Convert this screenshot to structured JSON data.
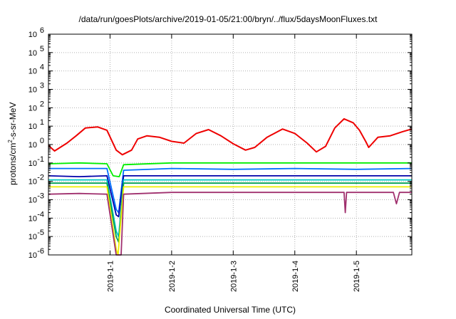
{
  "chart_data": {
    "type": "line",
    "title": "/data/run/goesPlots/archive/2019-01-05/21:00/bryn/../flux/5daysMoonFluxes.txt",
    "xlabel": "Coordinated Universal Time (UTC)",
    "ylabel": {
      "pre": "protons/cm",
      "sup": "2",
      "post": "-s-sr-MeV"
    },
    "yscale": "log",
    "ylim_exp": [
      -6,
      6
    ],
    "y_ticks": [
      {
        "base": "10",
        "exp": "-6"
      },
      {
        "base": "10",
        "exp": "-5"
      },
      {
        "base": "10",
        "exp": "-4"
      },
      {
        "base": "10",
        "exp": "-3"
      },
      {
        "base": "10",
        "exp": "-2"
      },
      {
        "base": "10",
        "exp": "-1"
      },
      {
        "base": "10",
        "exp": "0"
      },
      {
        "base": "10",
        "exp": "1"
      },
      {
        "base": "10",
        "exp": "2"
      },
      {
        "base": "10",
        "exp": "3"
      },
      {
        "base": "10",
        "exp": "4"
      },
      {
        "base": "10",
        "exp": "5"
      },
      {
        "base": "10",
        "exp": "6"
      }
    ],
    "xlim_days": [
      -1.0,
      4.9
    ],
    "x_ticks": [
      {
        "label": "2019-1-1",
        "day": 0
      },
      {
        "label": "2019-1-2",
        "day": 1
      },
      {
        "label": "2019-1-3",
        "day": 2
      },
      {
        "label": "2019-1-4",
        "day": 3
      },
      {
        "label": "2019-1-5",
        "day": 4
      }
    ],
    "grid": true,
    "series": [
      {
        "color": "#ee0000",
        "style": "red",
        "points": [
          [
            -1.0,
            0.9
          ],
          [
            -0.9,
            0.45
          ],
          [
            -0.7,
            1.2
          ],
          [
            -0.55,
            3
          ],
          [
            -0.4,
            8
          ],
          [
            -0.2,
            9
          ],
          [
            -0.05,
            6
          ],
          [
            0.1,
            0.5
          ],
          [
            0.2,
            0.28
          ],
          [
            0.35,
            0.5
          ],
          [
            0.45,
            2
          ],
          [
            0.6,
            3
          ],
          [
            0.8,
            2.5
          ],
          [
            1.0,
            1.5
          ],
          [
            1.2,
            1.2
          ],
          [
            1.4,
            4
          ],
          [
            1.6,
            6.5
          ],
          [
            1.8,
            3
          ],
          [
            2.0,
            1.1
          ],
          [
            2.2,
            0.5
          ],
          [
            2.35,
            0.7
          ],
          [
            2.55,
            2.5
          ],
          [
            2.8,
            7
          ],
          [
            3.0,
            4
          ],
          [
            3.2,
            1.2
          ],
          [
            3.35,
            0.4
          ],
          [
            3.5,
            0.8
          ],
          [
            3.65,
            8
          ],
          [
            3.8,
            25
          ],
          [
            3.95,
            15
          ],
          [
            4.05,
            6
          ],
          [
            4.15,
            1.5
          ],
          [
            4.2,
            0.7
          ],
          [
            4.35,
            2.5
          ],
          [
            4.55,
            3
          ],
          [
            4.75,
            5
          ],
          [
            4.9,
            7
          ]
        ]
      },
      {
        "color": "#00ee00",
        "style": "green",
        "points": [
          [
            -1.0,
            0.09
          ],
          [
            -0.5,
            0.1
          ],
          [
            -0.05,
            0.09
          ],
          [
            0.05,
            0.02
          ],
          [
            0.15,
            0.018
          ],
          [
            0.22,
            0.08
          ],
          [
            1.0,
            0.1
          ],
          [
            2.0,
            0.1
          ],
          [
            3.0,
            0.1
          ],
          [
            4.0,
            0.1
          ],
          [
            4.9,
            0.1
          ]
        ]
      },
      {
        "color": "#0070ff",
        "style": "blue",
        "points": [
          [
            -1.0,
            0.05
          ],
          [
            -0.5,
            0.05
          ],
          [
            -0.05,
            0.05
          ],
          [
            0.1,
            0.0003
          ],
          [
            0.14,
            0.0002
          ],
          [
            0.22,
            0.04
          ],
          [
            1.0,
            0.05
          ],
          [
            2.0,
            0.045
          ],
          [
            3.0,
            0.05
          ],
          [
            4.0,
            0.045
          ],
          [
            4.9,
            0.05
          ]
        ]
      },
      {
        "color": "#0000aa",
        "style": "navy",
        "points": [
          [
            -1.0,
            0.02
          ],
          [
            -0.5,
            0.018
          ],
          [
            -0.05,
            0.02
          ],
          [
            0.1,
            0.00015
          ],
          [
            0.14,
            0.00012
          ],
          [
            0.22,
            0.02
          ],
          [
            1.0,
            0.02
          ],
          [
            2.0,
            0.02
          ],
          [
            3.0,
            0.02
          ],
          [
            4.0,
            0.02
          ],
          [
            4.9,
            0.02
          ]
        ]
      },
      {
        "color": "#00c8c8",
        "style": "cyan",
        "points": [
          [
            -1.0,
            0.012
          ],
          [
            -0.5,
            0.012
          ],
          [
            -0.05,
            0.012
          ],
          [
            0.1,
            2e-05
          ],
          [
            0.14,
            1e-05
          ],
          [
            0.22,
            0.012
          ],
          [
            1.0,
            0.012
          ],
          [
            2.0,
            0.012
          ],
          [
            3.0,
            0.012
          ],
          [
            4.0,
            0.012
          ],
          [
            4.9,
            0.012
          ]
        ]
      },
      {
        "color": "#00a050",
        "style": "teal",
        "points": [
          [
            -1.0,
            0.008
          ],
          [
            -0.5,
            0.008
          ],
          [
            -0.05,
            0.008
          ],
          [
            0.1,
            1e-05
          ],
          [
            0.14,
            5e-06
          ],
          [
            0.22,
            0.008
          ],
          [
            1.0,
            0.008
          ],
          [
            2.0,
            0.008
          ],
          [
            3.0,
            0.008
          ],
          [
            4.0,
            0.008
          ],
          [
            4.9,
            0.008
          ]
        ]
      },
      {
        "color": "#eeee00",
        "style": "yellow",
        "points": [
          [
            -1.0,
            0.005
          ],
          [
            -0.5,
            0.005
          ],
          [
            -0.05,
            0.005
          ],
          [
            0.1,
            2e-06
          ],
          [
            0.13,
            1e-06
          ],
          [
            0.22,
            0.005
          ],
          [
            1.0,
            0.005
          ],
          [
            2.0,
            0.005
          ],
          [
            3.0,
            0.005
          ],
          [
            4.0,
            0.005
          ],
          [
            4.9,
            0.005
          ]
        ]
      },
      {
        "color": "#a0306e",
        "style": "purple",
        "points": [
          [
            -1.0,
            0.002
          ],
          [
            -0.5,
            0.0022
          ],
          [
            -0.05,
            0.002
          ],
          [
            0.1,
            1e-06
          ],
          [
            0.18,
            1e-06
          ],
          [
            0.22,
            0.002
          ],
          [
            1.0,
            0.0025
          ],
          [
            2.0,
            0.0025
          ],
          [
            3.0,
            0.0025
          ],
          [
            3.8,
            0.0025
          ],
          [
            3.82,
            0.0002
          ],
          [
            3.84,
            0.0025
          ],
          [
            4.0,
            0.0025
          ],
          [
            4.6,
            0.0025
          ],
          [
            4.65,
            0.0006
          ],
          [
            4.7,
            0.0025
          ],
          [
            4.9,
            0.0025
          ]
        ]
      }
    ]
  }
}
